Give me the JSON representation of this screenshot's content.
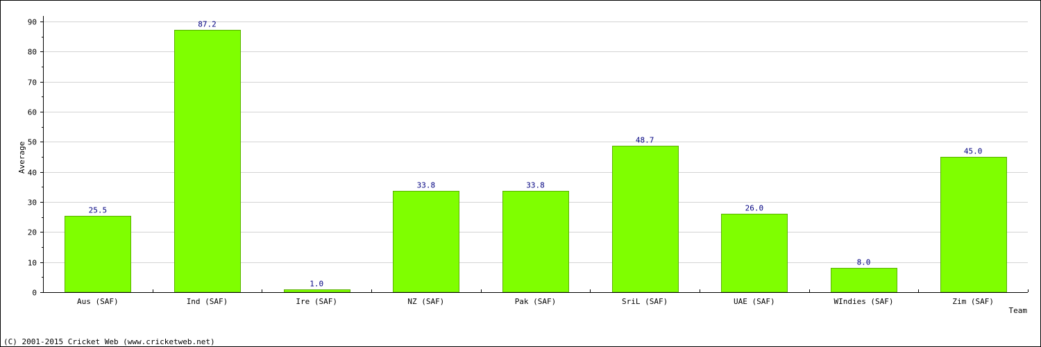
{
  "chart_data": {
    "type": "bar",
    "categories": [
      "Aus (SAF)",
      "Ind (SAF)",
      "Ire (SAF)",
      "NZ (SAF)",
      "Pak (SAF)",
      "SriL (SAF)",
      "UAE (SAF)",
      "WIndies (SAF)",
      "Zim (SAF)"
    ],
    "values": [
      25.5,
      87.2,
      1.0,
      33.8,
      33.8,
      48.7,
      26.0,
      8.0,
      45.0
    ],
    "value_labels": [
      "25.5",
      "87.2",
      "1.0",
      "33.8",
      "33.8",
      "48.7",
      "26.0",
      "8.0",
      "45.0"
    ],
    "xlabel": "Team",
    "ylabel": "Average",
    "ylim": [
      0,
      90
    ],
    "yticks": [
      0,
      10,
      20,
      30,
      40,
      50,
      60,
      70,
      80,
      90
    ],
    "grid": true,
    "legend": "none",
    "colors": {
      "bar_fill": "#7fff00",
      "bar_stroke": "#58b000",
      "value_label": "#000080",
      "grid": "#d3d3d3"
    }
  },
  "footer": {
    "copyright": "(C) 2001-2015 Cricket Web (www.cricketweb.net)"
  }
}
